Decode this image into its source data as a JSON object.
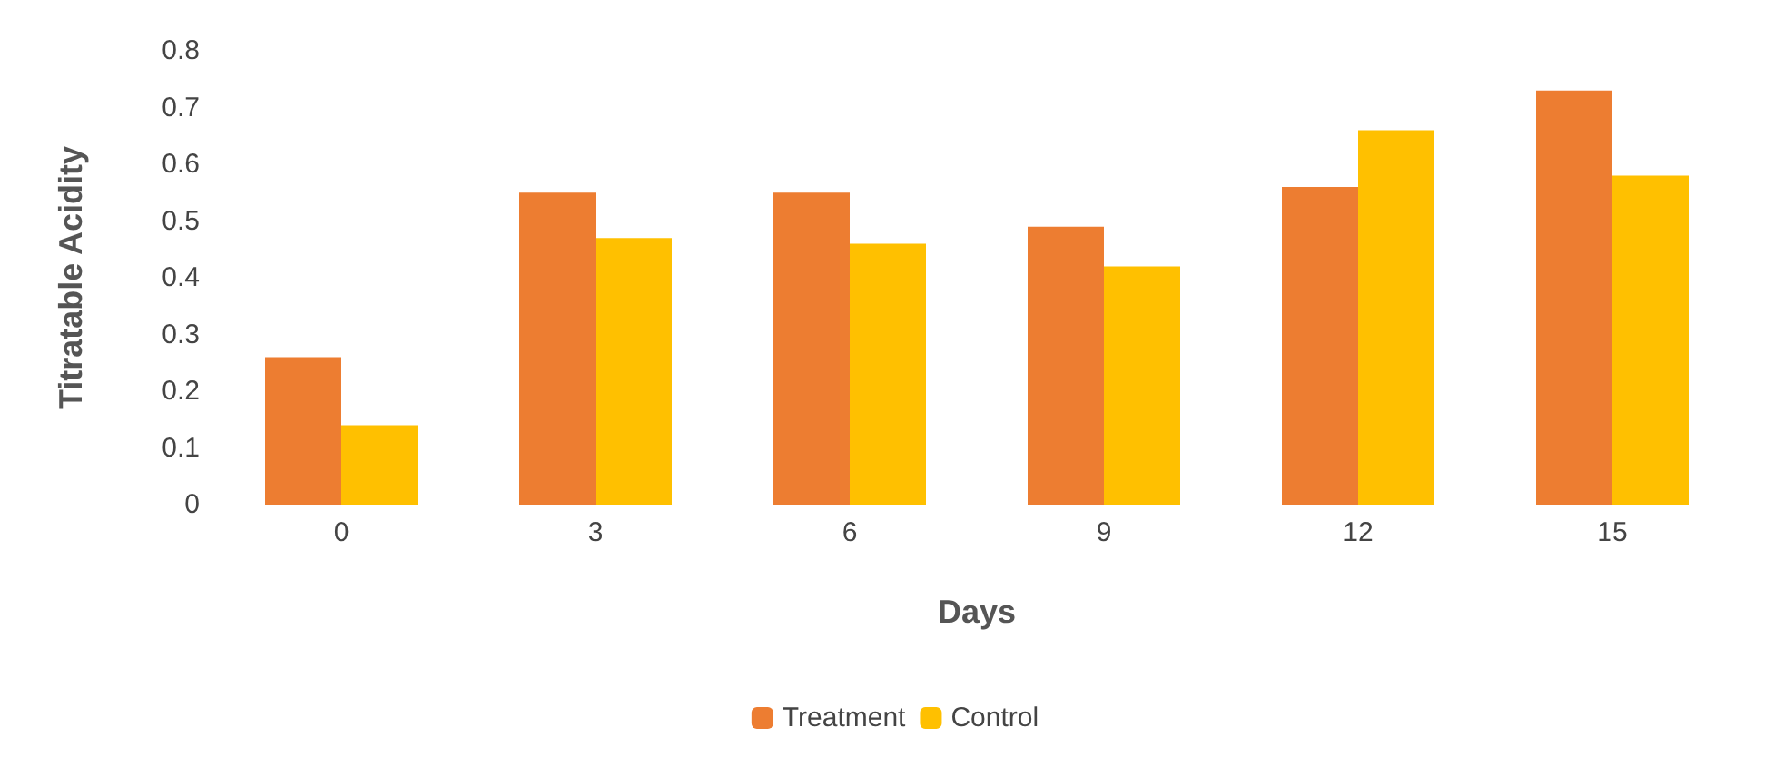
{
  "chart_data": {
    "type": "bar",
    "xlabel": "Days",
    "ylabel": "Titratable Acidity",
    "categories": [
      "0",
      "3",
      "6",
      "9",
      "12",
      "15"
    ],
    "series": [
      {
        "name": "Treatment",
        "color": "#ed7d31",
        "values": [
          0.26,
          0.55,
          0.55,
          0.49,
          0.56,
          0.73
        ]
      },
      {
        "name": "Control",
        "color": "#ffc000",
        "values": [
          0.14,
          0.47,
          0.46,
          0.42,
          0.66,
          0.58
        ]
      }
    ],
    "ylim": [
      0,
      0.8
    ],
    "yticks": [
      0,
      0.1,
      0.2,
      0.3,
      0.4,
      0.5,
      0.6,
      0.7,
      0.8
    ],
    "grid": false,
    "legend": "bottom"
  }
}
